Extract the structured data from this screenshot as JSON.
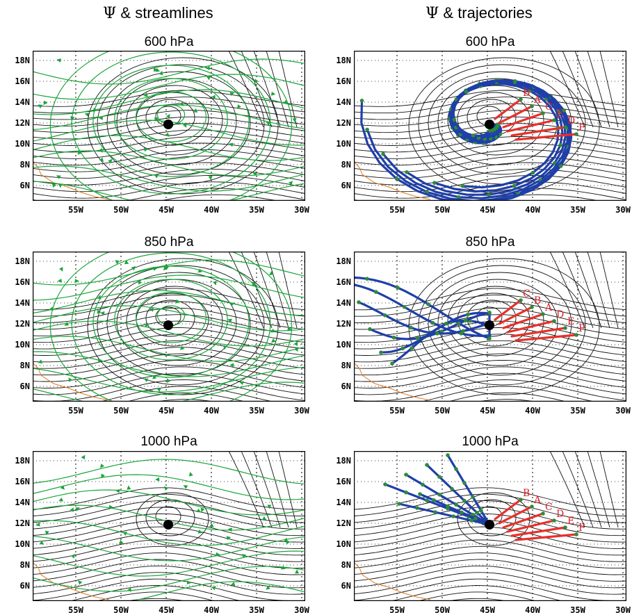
{
  "columns": {
    "left": {
      "symbol": "Ψ",
      "text": " & streamlines"
    },
    "right": {
      "symbol": "Ψ",
      "text": " & trajectories"
    }
  },
  "rows": [
    {
      "level": "600 hPa",
      "labels": [
        "B",
        "A",
        "C",
        "E",
        "D",
        "F"
      ]
    },
    {
      "level": "850 hPa",
      "labels": [
        "C",
        "B",
        "A",
        "D",
        "E",
        "F"
      ]
    },
    {
      "level": "1000 hPa",
      "labels": [
        "B",
        "A",
        "C",
        "D",
        "E",
        "F"
      ]
    }
  ],
  "lat_ticks": [
    "18N",
    "16N",
    "14N",
    "12N",
    "10N",
    "8N",
    "6N"
  ],
  "lon_ticks": [
    "55W",
    "50W",
    "45W",
    "40W",
    "35W",
    "30W"
  ],
  "colors": {
    "contour": "#111111",
    "streamline": "#1aa53a",
    "trajectory": "#1f3fa8",
    "trajectory_end": "#e8302a",
    "marker": "#2e8b3a",
    "coast": "#e07a20",
    "center": "#000000"
  },
  "center_marker": {
    "lon": "45W",
    "lat": "12N"
  }
}
